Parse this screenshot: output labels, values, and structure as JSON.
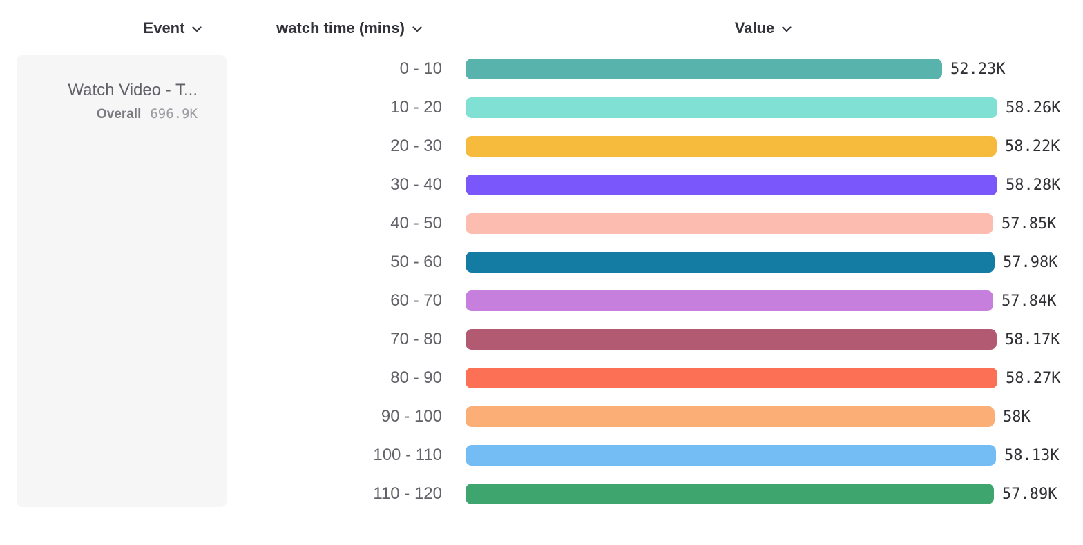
{
  "header": {
    "event_label": "Event",
    "breakdown_label": "watch time (mins)",
    "value_label": "Value"
  },
  "event_panel": {
    "event_name": "Watch Video - T...",
    "overall_label": "Overall",
    "overall_value": "696.9K"
  },
  "chart_data": {
    "type": "bar",
    "orientation": "horizontal",
    "title": "",
    "xlabel": "Value",
    "ylabel": "watch time (mins)",
    "categories": [
      "0 - 10",
      "10 - 20",
      "20 - 30",
      "30 - 40",
      "40 - 50",
      "50 - 60",
      "60 - 70",
      "70 - 80",
      "80 - 90",
      "90 - 100",
      "100 - 110",
      "110 - 120"
    ],
    "values": [
      52230,
      58260,
      58220,
      58280,
      57850,
      57980,
      57840,
      58170,
      58270,
      58000,
      58130,
      57890
    ],
    "value_labels": [
      "52.23K",
      "58.26K",
      "58.22K",
      "58.28K",
      "57.85K",
      "57.98K",
      "57.84K",
      "58.17K",
      "58.27K",
      "58K",
      "58.13K",
      "57.89K"
    ],
    "colors": [
      "#57B3AC",
      "#7FE0D3",
      "#F6BA3D",
      "#7A57FA",
      "#FCBCB0",
      "#147CA3",
      "#C67FDD",
      "#B25A72",
      "#FC7156",
      "#FCAE77",
      "#74BDF4",
      "#3EA56F"
    ],
    "xlim": [
      0,
      58280
    ],
    "grid": false,
    "legend_position": "left",
    "legend_entries": [
      "Watch Video - T..."
    ]
  }
}
